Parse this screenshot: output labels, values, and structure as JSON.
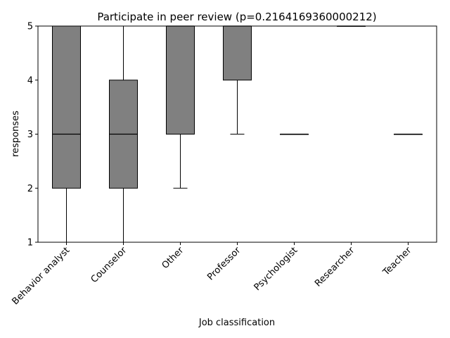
{
  "chart_data": {
    "type": "box",
    "title": "Participate in peer review (p=0.2164169360000212)",
    "xlabel": "Job classification",
    "ylabel": "responses",
    "ylim": [
      1,
      5
    ],
    "yticks": [
      "1",
      "2",
      "3",
      "4",
      "5"
    ],
    "grid": false,
    "box_color": "#808080",
    "categories": [
      "Behavior analyst",
      "Counselor",
      "Other",
      "Professor",
      "Psychologist",
      "Researcher",
      "Teacher"
    ],
    "boxes": [
      {
        "whisker_low": 1,
        "q1": 2,
        "median": 3,
        "q3": 5,
        "whisker_high": 5
      },
      {
        "whisker_low": 1,
        "q1": 2,
        "median": 3,
        "q3": 4,
        "whisker_high": 5
      },
      {
        "whisker_low": 2,
        "q1": 3,
        "median": 5,
        "q3": 5,
        "whisker_high": 5
      },
      {
        "whisker_low": 3,
        "q1": 4,
        "median": 5,
        "q3": 5,
        "whisker_high": 5
      },
      {
        "whisker_low": 3,
        "q1": 3,
        "median": 3,
        "q3": 3,
        "whisker_high": 3
      },
      {
        "whisker_low": 5,
        "q1": 5,
        "median": 5,
        "q3": 5,
        "whisker_high": 5
      },
      {
        "whisker_low": 3,
        "q1": 3,
        "median": 3,
        "q3": 3,
        "whisker_high": 3
      }
    ]
  }
}
